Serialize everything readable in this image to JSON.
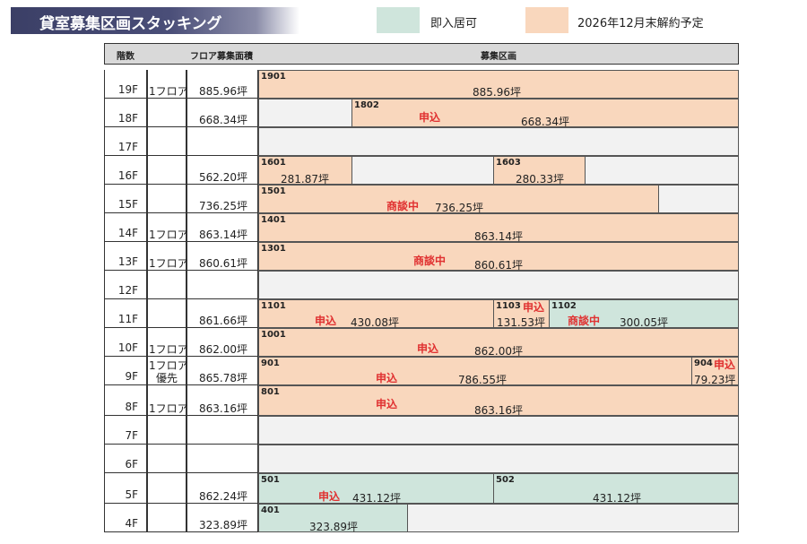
{
  "title": "貸室募集区画スタッキング",
  "legend": [
    {
      "label": "即入居可",
      "color": "#cfe5dc"
    },
    {
      "label": "2026年12月末解約予定",
      "color": "#f9d7bd"
    }
  ],
  "headers": {
    "floor": "階数",
    "type": "",
    "area": "フロア募集面積",
    "units": "募集区画"
  },
  "floors": [
    {
      "floor": "19F",
      "type": "1フロア",
      "area": "885.96坪"
    },
    {
      "floor": "18F",
      "type": "",
      "area": "668.34坪"
    },
    {
      "floor": "17F",
      "type": "",
      "area": ""
    },
    {
      "floor": "16F",
      "type": "",
      "area": "562.20坪"
    },
    {
      "floor": "15F",
      "type": "",
      "area": "736.25坪"
    },
    {
      "floor": "14F",
      "type": "1フロア",
      "area": "863.14坪"
    },
    {
      "floor": "13F",
      "type": "1フロア",
      "area": "860.61坪"
    },
    {
      "floor": "12F",
      "type": "",
      "area": ""
    },
    {
      "floor": "11F",
      "type": "",
      "area": "861.66坪"
    },
    {
      "floor": "10F",
      "type": "1フロア",
      "area": "862.00坪"
    },
    {
      "floor": "9F",
      "type": "1フロア",
      "type2": "優先",
      "area": "865.78坪"
    },
    {
      "floor": "8F",
      "type": "1フロア",
      "area": "863.16坪"
    },
    {
      "floor": "7F",
      "type": "",
      "area": ""
    },
    {
      "floor": "6F",
      "type": "",
      "area": ""
    },
    {
      "floor": "5F",
      "type": "",
      "area": "862.24坪"
    },
    {
      "floor": "4F",
      "type": "",
      "area": "323.89坪"
    }
  ],
  "units": [
    {
      "no": "1901",
      "area": "885.96坪",
      "status": "",
      "kind": "vacating"
    },
    {
      "no": "1802",
      "area": "668.34坪",
      "status": "申込",
      "kind": "vacating"
    },
    {
      "no": "1601",
      "area": "281.87坪",
      "status": "",
      "kind": "vacating"
    },
    {
      "no": "1603",
      "area": "280.33坪",
      "status": "",
      "kind": "vacating"
    },
    {
      "no": "1501",
      "area": "736.25坪",
      "status": "商談中",
      "kind": "vacating"
    },
    {
      "no": "1401",
      "area": "863.14坪",
      "status": "",
      "kind": "vacating"
    },
    {
      "no": "1301",
      "area": "860.61坪",
      "status": "商談中",
      "kind": "vacating"
    },
    {
      "no": "1101",
      "area": "430.08坪",
      "status": "申込",
      "kind": "vacating"
    },
    {
      "no": "1103",
      "area": "131.53坪",
      "status": "申込",
      "kind": "vacating"
    },
    {
      "no": "1102",
      "area": "300.05坪",
      "status": "商談中",
      "kind": "immediate"
    },
    {
      "no": "1001",
      "area": "862.00坪",
      "status": "申込",
      "kind": "vacating"
    },
    {
      "no": "901",
      "area": "786.55坪",
      "status": "申込",
      "kind": "vacating"
    },
    {
      "no": "904",
      "area": "79.23坪",
      "status": "申込",
      "kind": "vacating"
    },
    {
      "no": "801",
      "area": "863.16坪",
      "status": "申込",
      "kind": "vacating"
    },
    {
      "no": "501",
      "area": "431.12坪",
      "status": "申込",
      "kind": "immediate"
    },
    {
      "no": "502",
      "area": "431.12坪",
      "status": "",
      "kind": "immediate"
    },
    {
      "no": "401",
      "area": "323.89坪",
      "status": "",
      "kind": "immediate"
    }
  ]
}
